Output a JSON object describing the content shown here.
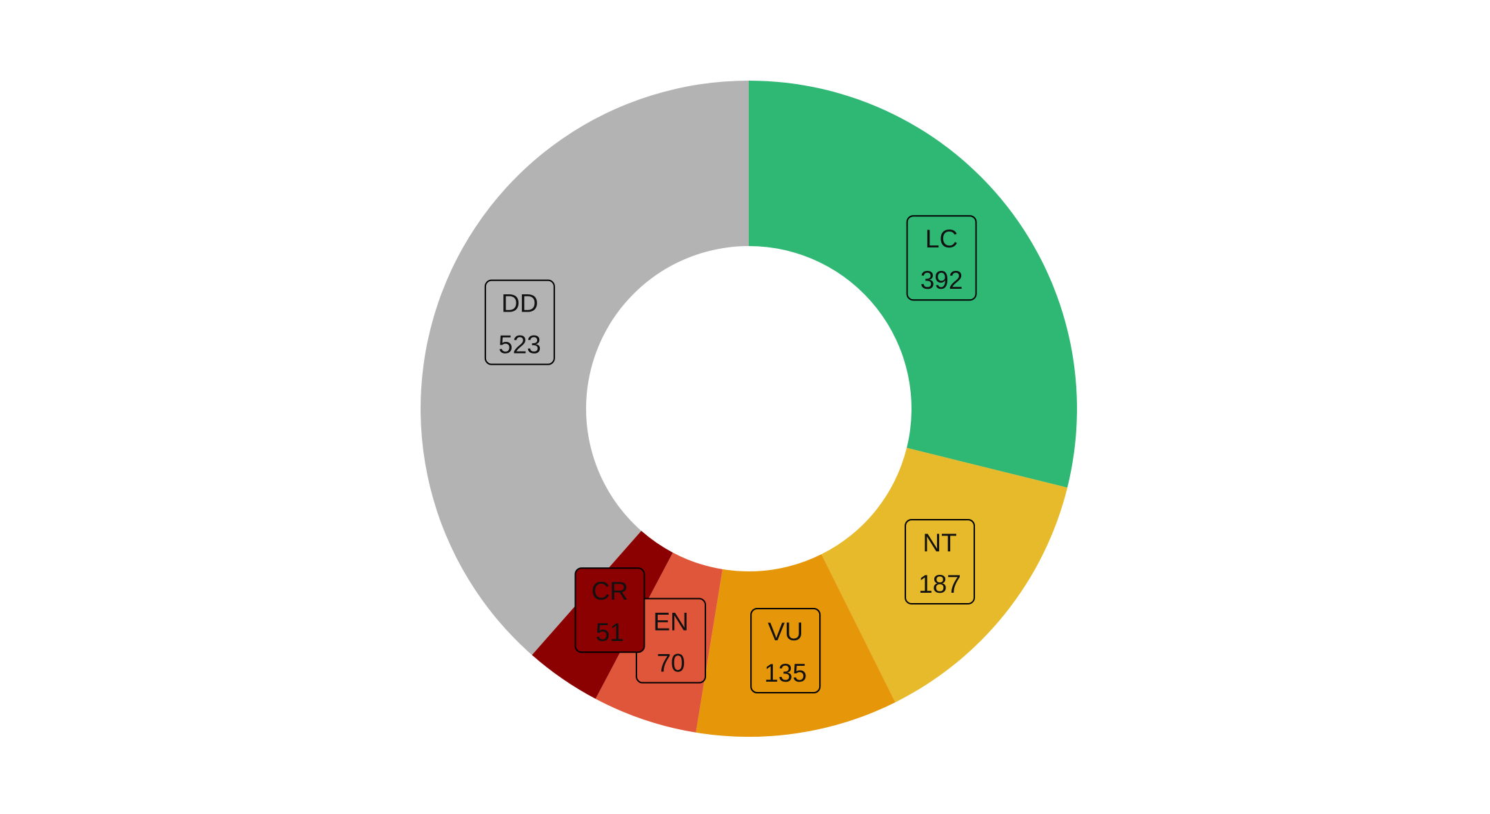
{
  "chart_data": {
    "type": "pie",
    "variant": "donut",
    "title": "",
    "categories": [
      "LC",
      "NT",
      "VU",
      "EN",
      "CR",
      "DD"
    ],
    "values": [
      392,
      187,
      135,
      70,
      51,
      523
    ],
    "colors": [
      "#2fb774",
      "#e6ba2a",
      "#e69609",
      "#e0563a",
      "#8b0000",
      "#b3b3b3"
    ],
    "start": "top",
    "direction": "clockwise",
    "legend": "none"
  }
}
